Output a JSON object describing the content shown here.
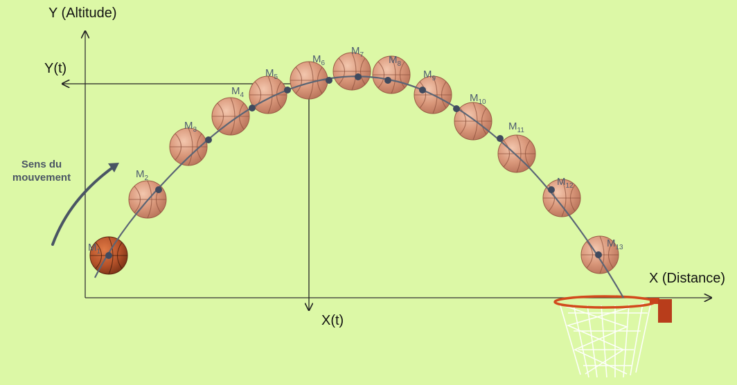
{
  "axes": {
    "y_label": "Y (Altitude)",
    "x_label": "X (Distance)",
    "yt_label": "Y(t)",
    "xt_label": "X(t)"
  },
  "direction": {
    "line1": "Sens du",
    "line2": "mouvement"
  },
  "points": [
    {
      "label": "M",
      "sub": "1"
    },
    {
      "label": "M",
      "sub": "2"
    },
    {
      "label": "M",
      "sub": "3"
    },
    {
      "label": "M",
      "sub": "4"
    },
    {
      "label": "M",
      "sub": "5"
    },
    {
      "label": "M",
      "sub": "6"
    },
    {
      "label": "M",
      "sub": "7"
    },
    {
      "label": "M",
      "sub": "8"
    },
    {
      "label": "M",
      "sub": "9"
    },
    {
      "label": "M",
      "sub": "10"
    },
    {
      "label": "M",
      "sub": "11"
    },
    {
      "label": "M",
      "sub": "12"
    },
    {
      "label": "M",
      "sub": "13"
    }
  ],
  "colors": {
    "background": "#dcf8a6",
    "ball": "#d58f6f",
    "ball_main": "#b5522a",
    "trajectory": "#5a6575",
    "point": "#3f4a5e",
    "rim": "#d24a1c",
    "net": "#ffffff"
  }
}
